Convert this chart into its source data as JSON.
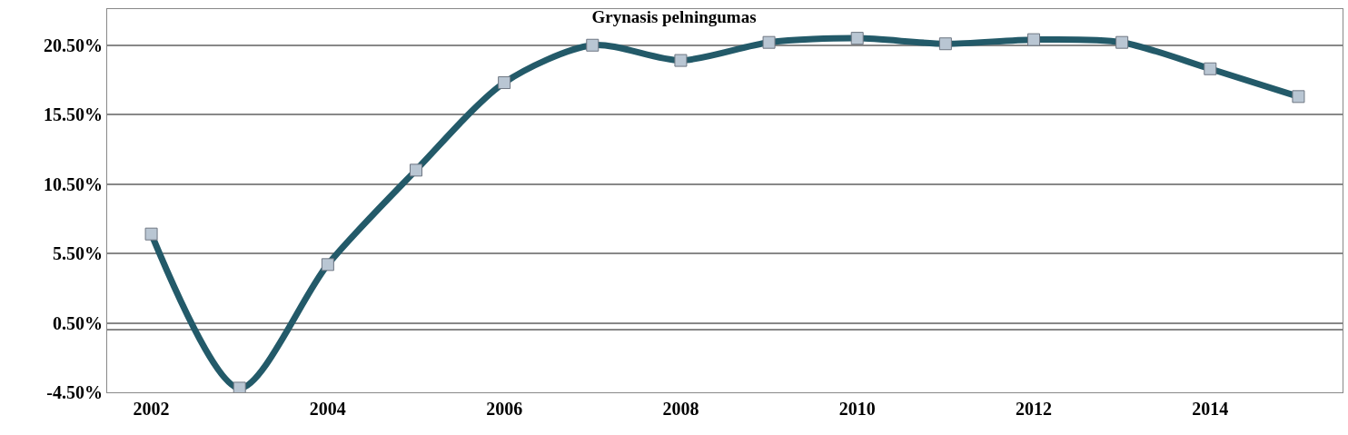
{
  "chart_data": {
    "type": "line",
    "title": "Grynasis pelningumas",
    "categories": [
      "2002",
      null,
      "2004",
      null,
      "2006",
      null,
      "2008",
      null,
      "2010",
      null,
      "2012",
      null,
      "2014",
      null
    ],
    "series": [
      {
        "color": "#235a69",
        "values": [
          6.9,
          -4.2,
          4.7,
          11.5,
          17.8,
          20.5,
          19.4,
          20.7,
          21.0,
          20.6,
          20.9,
          20.7,
          18.8,
          16.8
        ]
      }
    ],
    "ylim": [
      -4.5,
      23.1
    ],
    "yticks": [
      {
        "value": -4.5,
        "label": "-4.50%"
      },
      {
        "value": 0.5,
        "label": "0.50%"
      },
      {
        "value": 5.5,
        "label": "5.50%"
      },
      {
        "value": 10.5,
        "label": "10.50%"
      },
      {
        "value": 15.5,
        "label": "15.50%"
      },
      {
        "value": 20.5,
        "label": "20.50%"
      }
    ],
    "grid": "y",
    "marker": "square",
    "line_style": "solid"
  }
}
